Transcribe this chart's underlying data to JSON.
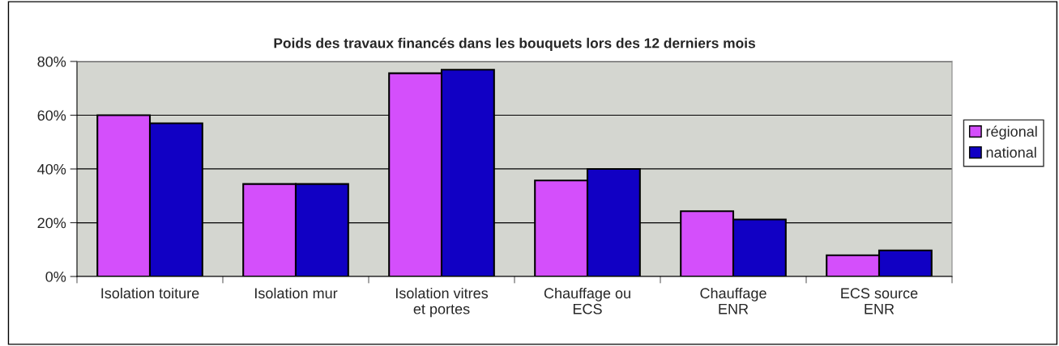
{
  "chart_data": {
    "type": "bar",
    "title": "Poids des travaux financés dans les bouquets lors des 12 derniers mois",
    "categories": [
      "Isolation toiture",
      "Isolation mur",
      "Isolation vitres\net portes",
      "Chauffage ou\nECS",
      "Chauffage\nENR",
      "ECS source\nENR"
    ],
    "series": [
      {
        "name": "régional",
        "color": "#d44ffb",
        "values": [
          60,
          34.4,
          75.6,
          35.7,
          24.3,
          7.9
        ]
      },
      {
        "name": "national",
        "color": "#1100c4",
        "values": [
          57,
          34.4,
          76.9,
          40,
          21.2,
          9.7
        ]
      }
    ],
    "ylim": [
      0,
      80
    ],
    "yticks": [
      {
        "value": 0,
        "label": "0%"
      },
      {
        "value": 20,
        "label": "20%"
      },
      {
        "value": 40,
        "label": "40%"
      },
      {
        "value": 60,
        "label": "60%"
      },
      {
        "value": 80,
        "label": "80%"
      }
    ],
    "grid": "y",
    "legend": "right"
  }
}
